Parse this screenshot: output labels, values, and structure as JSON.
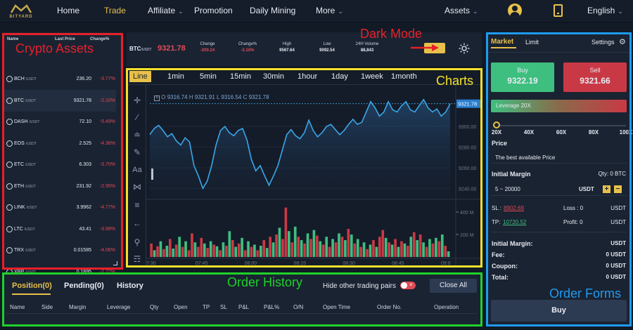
{
  "nav": {
    "logo_text": "BITYARD",
    "items": [
      "Home",
      "Trade",
      "Affiliate",
      "Promotion",
      "Daily Mining",
      "More"
    ],
    "assets": "Assets",
    "language": "English"
  },
  "annotations": {
    "crypto_assets": "Crypto Assets",
    "dark_mode": "Dark Mode",
    "charts": "Charts",
    "order_history": "Order History",
    "order_forms": "Order Forms"
  },
  "colors": {
    "red": "#e8202a",
    "yellow": "#f5e12b",
    "green": "#1fd12a",
    "blue": "#1f9bf0",
    "accent": "#e8c14a",
    "up": "#3fbf7f",
    "down": "#e04b57"
  },
  "assets_table": {
    "headers": [
      "Name",
      "Last Price",
      "Change%"
    ],
    "rows": [
      {
        "name": "BCH",
        "quote": "/USDT",
        "price": "236.20",
        "change": "-3.77%"
      },
      {
        "name": "BTC",
        "quote": "/USDT",
        "price": "9321.78",
        "change": "-2.10%"
      },
      {
        "name": "DASH",
        "quote": "/USDT",
        "price": "72.10",
        "change": "-5.49%"
      },
      {
        "name": "EOS",
        "quote": "/USDT",
        "price": "2.525",
        "change": "-4.36%"
      },
      {
        "name": "ETC",
        "quote": "/USDT",
        "price": "6.303",
        "change": "-3.70%"
      },
      {
        "name": "ETH",
        "quote": "/USDT",
        "price": "231.92",
        "change": "-2.95%"
      },
      {
        "name": "LINK",
        "quote": "/USDT",
        "price": "3.9962",
        "change": "-4.77%"
      },
      {
        "name": "LTC",
        "quote": "/USDT",
        "price": "43.41",
        "change": "-3.88%"
      },
      {
        "name": "TRX",
        "quote": "/USDT",
        "price": "0.01585",
        "change": "-4.06%"
      },
      {
        "name": "XRP",
        "quote": "/USDT",
        "price": "0.1895",
        "change": "-2.72%"
      }
    ]
  },
  "ticker": {
    "pair": "BTC",
    "quote": "/USDT",
    "price": "9321.78",
    "stats": [
      {
        "label": "Change",
        "value": "-200.24"
      },
      {
        "label": "Change%",
        "value": "-2.10%"
      },
      {
        "label": "High",
        "value": "9567.64"
      },
      {
        "label": "Low",
        "value": "9092.54"
      },
      {
        "label": "24H Volume",
        "value": "88,843"
      }
    ]
  },
  "chart": {
    "timeframes": [
      "Line",
      "1min",
      "5min",
      "15min",
      "30min",
      "1hour",
      "1day",
      "1week",
      "1month"
    ],
    "ohlc": {
      "o_label": "O",
      "o": "9316.74",
      "h_label": "H",
      "h": "9321.91",
      "l_label": "L",
      "l": "9316.54",
      "c_label": "C",
      "c": "9321.78"
    },
    "current_price_label": "9321.78",
    "time_labels": [
      "7:30",
      "07:45",
      "08:00",
      "08:15",
      "08:30",
      "08:45",
      "09:0"
    ]
  },
  "chart_data": {
    "type": "line",
    "series": [
      {
        "values": [
          9292,
          9298,
          9301,
          9296,
          9290,
          9293,
          9286,
          9282,
          9289,
          9285,
          9262,
          9252,
          9240,
          9247,
          9262,
          9282,
          9296,
          9300,
          9294,
          9291,
          9296,
          9298,
          9287,
          9268,
          9257,
          9262,
          9252,
          9243,
          9252,
          9262,
          9277,
          9292,
          9297,
          9291,
          9288,
          9294,
          9306,
          9296,
          9290,
          9294,
          9300,
          9302,
          9297,
          9292,
          9296,
          9302,
          9307,
          9302,
          9304,
          9314,
          9324,
          9318,
          9310,
          9314,
          9324,
          9316,
          9314,
          9320,
          9324,
          9316,
          9314,
          9320,
          9326,
          9318,
          9314,
          9317,
          9310,
          9314,
          9322
        ]
      }
    ],
    "y_ticks": [
      9300,
      9280,
      9260,
      9240
    ],
    "ylim": [
      9230,
      9332
    ],
    "volume": {
      "y_ticks": [
        "400 M",
        "200 M"
      ],
      "ylim": [
        0,
        500
      ],
      "bars": [
        {
          "v": 120,
          "up": false
        },
        {
          "v": 60,
          "up": true
        },
        {
          "v": 95,
          "up": false
        },
        {
          "v": 140,
          "up": true
        },
        {
          "v": 70,
          "up": false
        },
        {
          "v": 100,
          "up": true
        },
        {
          "v": 160,
          "up": false
        },
        {
          "v": 75,
          "up": true
        },
        {
          "v": 110,
          "up": false
        },
        {
          "v": 180,
          "up": true
        },
        {
          "v": 90,
          "up": false
        },
        {
          "v": 140,
          "up": true
        },
        {
          "v": 60,
          "up": false
        },
        {
          "v": 210,
          "up": false
        },
        {
          "v": 130,
          "up": true
        },
        {
          "v": 90,
          "up": false
        },
        {
          "v": 170,
          "up": false
        },
        {
          "v": 120,
          "up": true
        },
        {
          "v": 80,
          "up": false
        },
        {
          "v": 140,
          "up": true
        },
        {
          "v": 110,
          "up": false
        },
        {
          "v": 95,
          "up": true
        },
        {
          "v": 60,
          "up": false
        },
        {
          "v": 130,
          "up": true
        },
        {
          "v": 100,
          "up": false
        },
        {
          "v": 230,
          "up": true
        },
        {
          "v": 150,
          "up": false
        },
        {
          "v": 90,
          "up": true
        },
        {
          "v": 120,
          "up": false
        },
        {
          "v": 170,
          "up": true
        },
        {
          "v": 60,
          "up": false
        },
        {
          "v": 140,
          "up": true
        },
        {
          "v": 90,
          "up": false
        },
        {
          "v": 110,
          "up": true
        },
        {
          "v": 60,
          "up": false
        },
        {
          "v": 100,
          "up": true
        },
        {
          "v": 150,
          "up": false
        },
        {
          "v": 80,
          "up": true
        },
        {
          "v": 180,
          "up": false
        },
        {
          "v": 130,
          "up": true
        },
        {
          "v": 200,
          "up": false
        },
        {
          "v": 260,
          "up": true
        },
        {
          "v": 160,
          "up": false
        },
        {
          "v": 440,
          "up": false
        },
        {
          "v": 230,
          "up": true
        },
        {
          "v": 130,
          "up": false
        },
        {
          "v": 270,
          "up": true
        },
        {
          "v": 180,
          "up": false
        },
        {
          "v": 150,
          "up": true
        },
        {
          "v": 120,
          "up": false
        },
        {
          "v": 210,
          "up": true
        },
        {
          "v": 160,
          "up": false
        },
        {
          "v": 240,
          "up": true
        },
        {
          "v": 190,
          "up": false
        },
        {
          "v": 140,
          "up": true
        },
        {
          "v": 110,
          "up": false
        },
        {
          "v": 180,
          "up": true
        },
        {
          "v": 90,
          "up": false
        },
        {
          "v": 160,
          "up": true
        },
        {
          "v": 130,
          "up": false
        },
        {
          "v": 210,
          "up": true
        },
        {
          "v": 180,
          "up": false
        },
        {
          "v": 150,
          "up": true
        },
        {
          "v": 250,
          "up": false
        },
        {
          "v": 200,
          "up": true
        },
        {
          "v": 120,
          "up": false
        },
        {
          "v": 160,
          "up": true
        },
        {
          "v": 90,
          "up": false
        },
        {
          "v": 130,
          "up": true
        },
        {
          "v": 70,
          "up": false
        },
        {
          "v": 110,
          "up": true
        },
        {
          "v": 150,
          "up": false
        },
        {
          "v": 90,
          "up": true
        },
        {
          "v": 180,
          "up": false
        },
        {
          "v": 240,
          "up": false
        },
        {
          "v": 170,
          "up": true
        },
        {
          "v": 130,
          "up": false
        },
        {
          "v": 110,
          "up": true
        },
        {
          "v": 160,
          "up": false
        },
        {
          "v": 90,
          "up": true
        },
        {
          "v": 140,
          "up": false
        },
        {
          "v": 120,
          "up": true
        },
        {
          "v": 100,
          "up": false
        },
        {
          "v": 180,
          "up": true
        },
        {
          "v": 220,
          "up": false
        },
        {
          "v": 150,
          "up": true
        },
        {
          "v": 200,
          "up": false
        },
        {
          "v": 130,
          "up": true
        },
        {
          "v": 90,
          "up": false
        },
        {
          "v": 160,
          "up": true
        },
        {
          "v": 120,
          "up": false
        },
        {
          "v": 170,
          "up": true
        },
        {
          "v": 140,
          "up": false
        },
        {
          "v": 200,
          "up": true
        },
        {
          "v": 100,
          "up": false
        },
        {
          "v": 50,
          "up": true
        }
      ]
    }
  },
  "order_history": {
    "tabs": [
      "Position(0)",
      "Pending(0)",
      "History"
    ],
    "hide_label": "Hide other trading pairs",
    "close_all": "Close All",
    "columns": [
      "Name",
      "Side",
      "Margin",
      "Leverage",
      "Qty",
      "Open",
      "TP",
      "SL",
      "P&L",
      "P&L%",
      "O/N",
      "Open Time",
      "Order No.",
      "Operation"
    ]
  },
  "order_form": {
    "tabs": [
      "Market",
      "Limit"
    ],
    "settings": "Settings",
    "buy_label": "Buy",
    "buy_price": "9322.19",
    "sell_label": "Sell",
    "sell_price": "9321.66",
    "leverage_label": "Leverage 20X",
    "leverage_ticks": [
      "20X",
      "40X",
      "60X",
      "80X",
      "100X"
    ],
    "leverage_fraction": 0.0,
    "price_label": "Price",
    "price_value": "The best available Price",
    "initial_margin_label": "Initial Margin",
    "qty_label": "Qty: 0 BTC",
    "margin_range": "5 ~ 20000",
    "margin_unit": "USDT",
    "plus": "+",
    "minus": "−",
    "sl_label": "SL :",
    "sl_value": "8902.69",
    "loss_label": "Loss : 0",
    "loss_unit": "USDT",
    "tp_label": "TP:",
    "tp_value": "10720.52",
    "profit_label": "Profit: 0",
    "profit_unit": "USDT",
    "summary": [
      {
        "label": "Initial Margin:",
        "value": "USDT"
      },
      {
        "label": "Fee:",
        "value": "0 USDT"
      },
      {
        "label": "Coupon:",
        "value": "0 USDT"
      },
      {
        "label": "Total:",
        "value": "0 USDT"
      }
    ],
    "submit": "Buy"
  }
}
